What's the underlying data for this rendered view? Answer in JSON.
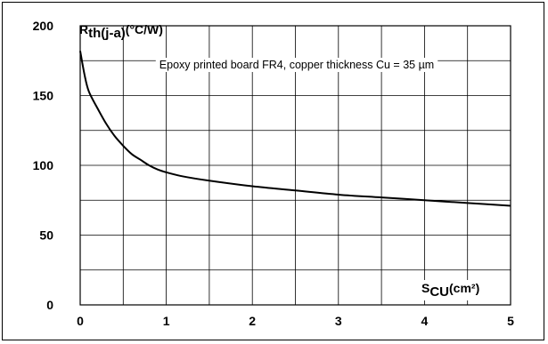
{
  "chart_data": {
    "type": "line",
    "ylabel": {
      "main": "R",
      "sub": "th(j-a)",
      "unit": "(°C/W)"
    },
    "xlabel": {
      "main": "S",
      "sub": "CU",
      "unit": "(cm²)"
    },
    "annotation": "Epoxy printed board FR4, copper thickness Cu = 35 µm",
    "xlim": [
      0,
      5
    ],
    "ylim": [
      0,
      200
    ],
    "x_ticks": [
      "0",
      "1",
      "2",
      "3",
      "4",
      "5"
    ],
    "y_ticks": [
      "0",
      "50",
      "100",
      "150",
      "200"
    ],
    "grid": {
      "x_step": 0.5,
      "y_step": 25
    },
    "series": [
      {
        "x": [
          0,
          0.05,
          0.1,
          0.2,
          0.3,
          0.4,
          0.5,
          0.6,
          0.7,
          0.8,
          0.9,
          1.0,
          1.2,
          1.5,
          2.0,
          2.5,
          3.0,
          3.5,
          4.0,
          4.5,
          5.0
        ],
        "y": [
          182,
          165,
          153,
          141,
          130,
          121,
          114,
          108,
          104,
          100,
          97,
          95,
          92,
          89,
          85,
          82,
          79,
          77,
          75,
          73,
          71
        ]
      }
    ],
    "line_color": "#000000"
  }
}
